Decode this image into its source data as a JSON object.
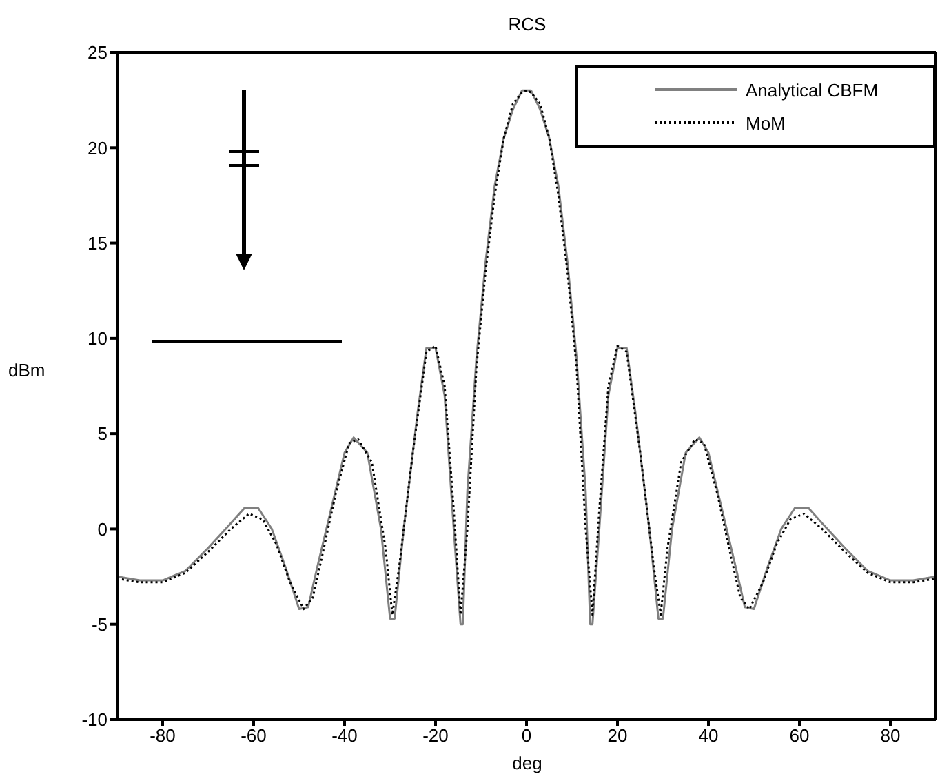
{
  "chart_data": {
    "type": "line",
    "title": "RCS",
    "xlabel": "deg",
    "ylabel": "dBm",
    "xlim": [
      -90,
      90
    ],
    "xticks": [
      -80,
      -60,
      -40,
      -20,
      0,
      20,
      40,
      60,
      80
    ],
    "ylim": [
      -10,
      25
    ],
    "yticks": [
      -10,
      -5,
      0,
      5,
      10,
      15,
      20,
      25
    ],
    "legend": "top right",
    "grid": false,
    "marker": "none",
    "series": [
      {
        "name": "Analytical CBFM",
        "color": "#808080",
        "line_style": "solid",
        "x": [
          -90,
          -85,
          -80,
          -75,
          -70,
          -65,
          -62,
          -59,
          -56,
          -53,
          -50,
          -48,
          -46,
          -43,
          -40,
          -38,
          -35,
          -32,
          -30,
          -29,
          -27,
          -24,
          -22,
          -20,
          -18,
          -16,
          -14.5,
          -14,
          -13,
          -11,
          -9,
          -7,
          -5,
          -3,
          -1,
          1,
          3,
          5,
          7,
          9,
          11,
          13,
          14,
          14.5,
          16,
          18,
          20,
          22,
          24,
          27,
          29,
          30,
          32,
          35,
          38,
          40,
          43,
          46,
          48,
          50,
          53,
          56,
          59,
          62,
          65,
          70,
          75,
          80,
          85,
          90
        ],
        "values": [
          -2.5,
          -2.7,
          -2.7,
          -2.2,
          -1,
          0.3,
          1.1,
          1.1,
          0,
          -2,
          -4.2,
          -4.1,
          -2,
          1,
          4,
          4.8,
          4,
          0,
          -4.7,
          -4.7,
          0,
          6,
          9.5,
          9.5,
          7,
          0,
          -5,
          -5,
          2,
          9,
          14,
          18,
          20.5,
          22,
          23,
          23,
          22,
          20.5,
          18,
          14,
          9,
          2,
          -5,
          -5,
          0,
          7,
          9.5,
          9.5,
          6,
          0,
          -4.7,
          -4.7,
          0,
          4,
          4.8,
          4,
          1,
          -2,
          -4.1,
          -4.2,
          -2,
          0,
          1.1,
          1.1,
          0.3,
          -1,
          -2.2,
          -2.7,
          -2.7,
          -2.5
        ]
      },
      {
        "name": "MoM",
        "color": "#000000",
        "line_style": "dotted",
        "x": [
          -90,
          -85,
          -80,
          -75,
          -70,
          -65,
          -61,
          -58,
          -55,
          -52,
          -49,
          -47,
          -45,
          -42,
          -39,
          -37,
          -34,
          -31,
          -29.5,
          -28,
          -25,
          -22,
          -20,
          -18,
          -16,
          -14.5,
          -13,
          -11,
          -9,
          -7,
          -5,
          -3,
          -1,
          0,
          1,
          3,
          5,
          7,
          9,
          11,
          13,
          14.5,
          16,
          18,
          20,
          22,
          25,
          28,
          29.5,
          31,
          34,
          37,
          39,
          42,
          45,
          47,
          49,
          52,
          55,
          58,
          61,
          65,
          70,
          75,
          80,
          85,
          90
        ],
        "values": [
          -2.6,
          -2.8,
          -2.8,
          -2.3,
          -1.2,
          0,
          0.8,
          0.5,
          -0.8,
          -2.8,
          -4.2,
          -3.6,
          -1.5,
          1.8,
          4.5,
          4.7,
          3.5,
          -1,
          -4.5,
          -2,
          4,
          9.3,
          9.6,
          7.5,
          1,
          -4.5,
          0,
          8.5,
          13.5,
          17.5,
          20.5,
          22.3,
          22.9,
          23,
          22.9,
          22.3,
          20.5,
          17.5,
          13.5,
          8.5,
          0,
          -4.5,
          1,
          7.5,
          9.6,
          9.3,
          4,
          -2,
          -4.5,
          -1,
          3.5,
          4.7,
          4.5,
          1.8,
          -1.5,
          -3.6,
          -4.2,
          -2.8,
          -0.8,
          0.5,
          0.8,
          0,
          -1.2,
          -2.3,
          -2.8,
          -2.8,
          -2.6
        ]
      }
    ]
  }
}
